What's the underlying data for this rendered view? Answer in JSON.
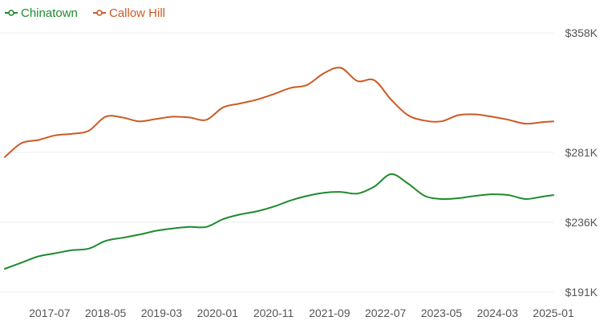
{
  "chart_data": {
    "type": "line",
    "y_ticks": [
      "$358K",
      "$281K",
      "$236K",
      "$191K"
    ],
    "y_tick_values": [
      358000,
      281000,
      236000,
      191000
    ],
    "ylim": [
      191000,
      358000
    ],
    "x_ticks": [
      "2017-07",
      "2018-05",
      "2019-03",
      "2020-01",
      "2020-11",
      "2021-09",
      "2022-07",
      "2023-05",
      "2024-03",
      "2025-01"
    ],
    "x_range": [
      "2016-11",
      "2025-01"
    ],
    "grid": true,
    "legend_position": "top-left",
    "x": [
      "2016-11",
      "2017-02",
      "2017-05",
      "2017-08",
      "2017-11",
      "2018-02",
      "2018-05",
      "2018-08",
      "2018-11",
      "2019-02",
      "2019-05",
      "2019-08",
      "2019-11",
      "2020-02",
      "2020-05",
      "2020-08",
      "2020-11",
      "2021-02",
      "2021-05",
      "2021-08",
      "2021-11",
      "2022-02",
      "2022-05",
      "2022-08",
      "2022-11",
      "2023-02",
      "2023-05",
      "2023-08",
      "2023-11",
      "2024-02",
      "2024-05",
      "2024-08",
      "2024-11",
      "2025-01"
    ],
    "series": [
      {
        "name": "Chinatown",
        "color": "#1e8b2e",
        "values": [
          206000,
          210000,
          214000,
          216000,
          218000,
          219000,
          224000,
          226000,
          228000,
          230500,
          232000,
          233000,
          233000,
          238000,
          241000,
          243000,
          246000,
          250000,
          253000,
          255000,
          255500,
          254500,
          259000,
          267000,
          261000,
          253000,
          251000,
          251500,
          253000,
          254000,
          253500,
          251000,
          252500,
          253500
        ]
      },
      {
        "name": "Callow Hill",
        "color": "#cc5a24",
        "values": [
          278000,
          287000,
          289000,
          292000,
          293000,
          295000,
          304000,
          303500,
          301000,
          302500,
          304000,
          303500,
          302000,
          310000,
          312500,
          315000,
          318500,
          322500,
          324500,
          332000,
          335500,
          327000,
          327500,
          315000,
          305000,
          301500,
          301000,
          305000,
          305500,
          304000,
          302000,
          299500,
          300500,
          301000
        ]
      }
    ]
  }
}
